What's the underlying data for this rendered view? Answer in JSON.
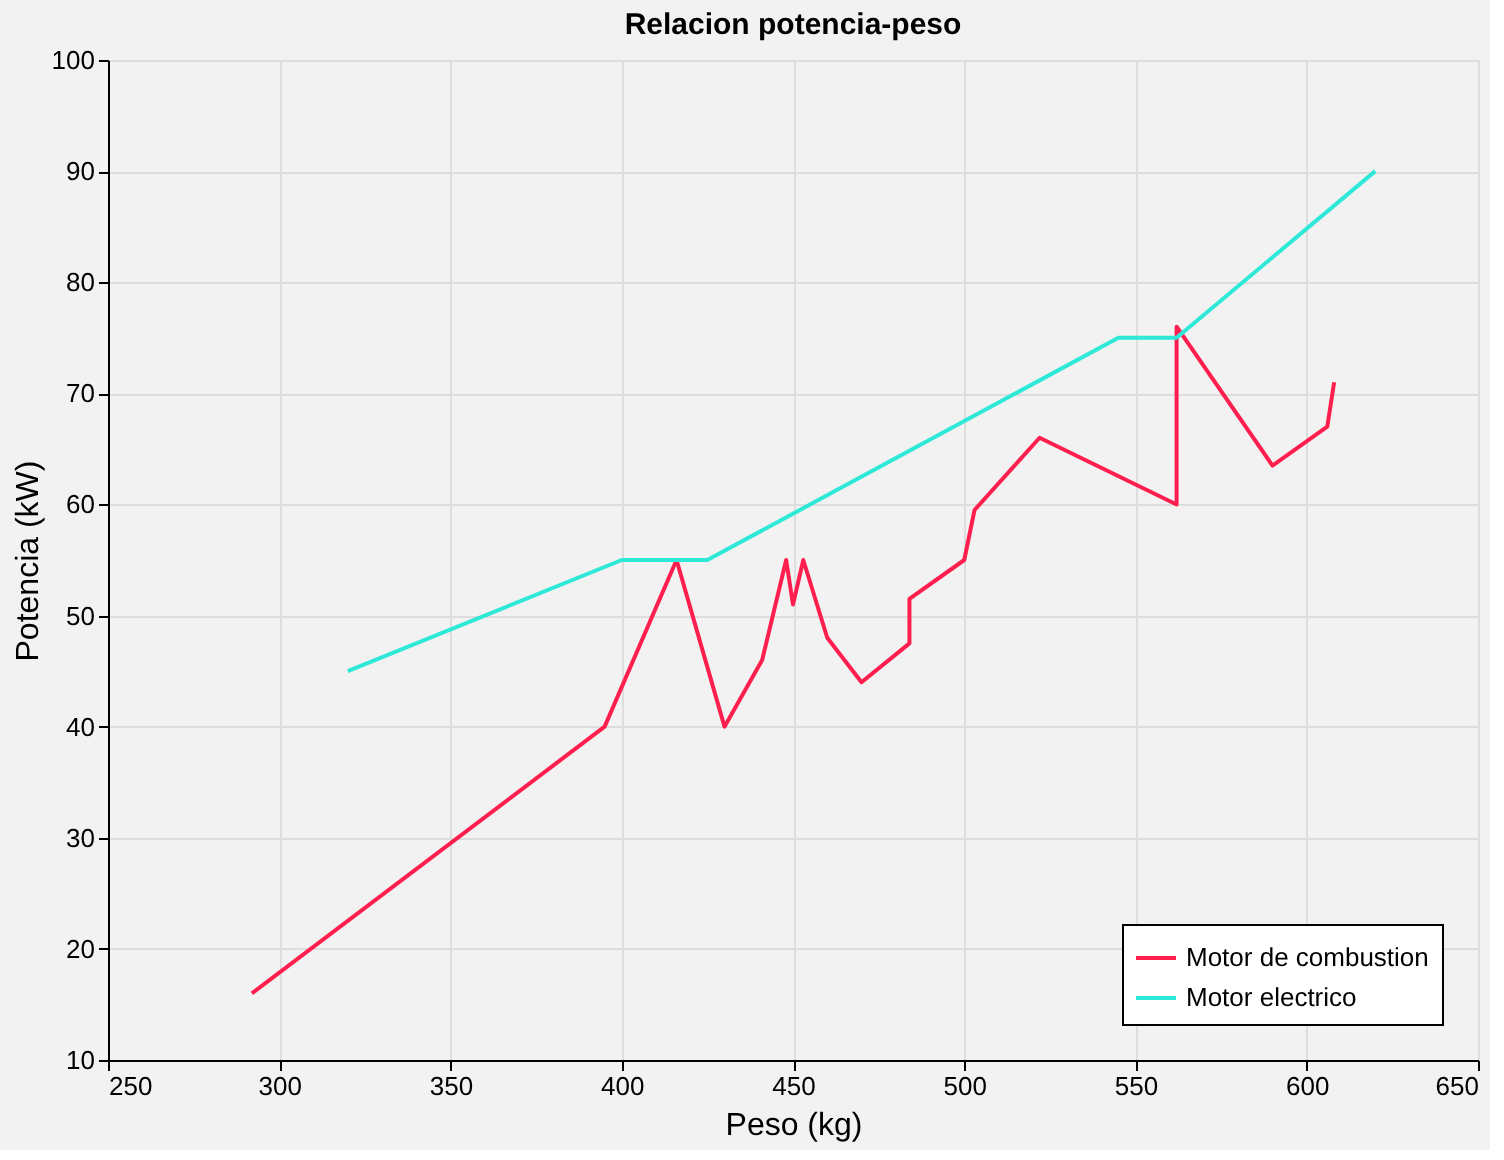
{
  "chart_data": {
    "type": "line",
    "title": "Relacion potencia-peso",
    "xlabel": "Peso (kg)",
    "ylabel": "Potencia (kW)",
    "xlim": [
      250,
      650
    ],
    "xticks": [
      250,
      300,
      350,
      400,
      450,
      500,
      550,
      600,
      650
    ],
    "ylim": [
      10,
      100
    ],
    "yticks": [
      10,
      20,
      30,
      40,
      50,
      60,
      70,
      80,
      90,
      100
    ],
    "grid": true,
    "legend": "bottom right",
    "line_style": "solid",
    "series": [
      {
        "name": "Motor de combustion",
        "color": "#ff1f4f",
        "x": [
          292,
          395,
          416,
          430,
          441,
          448,
          450,
          453,
          460,
          470,
          484,
          484,
          500,
          503,
          522,
          562,
          562,
          590,
          606,
          608
        ],
        "values": [
          16,
          40,
          55,
          40,
          46,
          55,
          51,
          55,
          48,
          44,
          47.5,
          51.5,
          55,
          59.5,
          66,
          60,
          76,
          63.5,
          67,
          71
        ]
      },
      {
        "name": "Motor electrico",
        "color": "#2ee8d8",
        "x": [
          320,
          400,
          425,
          545,
          562,
          620
        ],
        "values": [
          45,
          55,
          55,
          75,
          75,
          90
        ]
      }
    ]
  }
}
